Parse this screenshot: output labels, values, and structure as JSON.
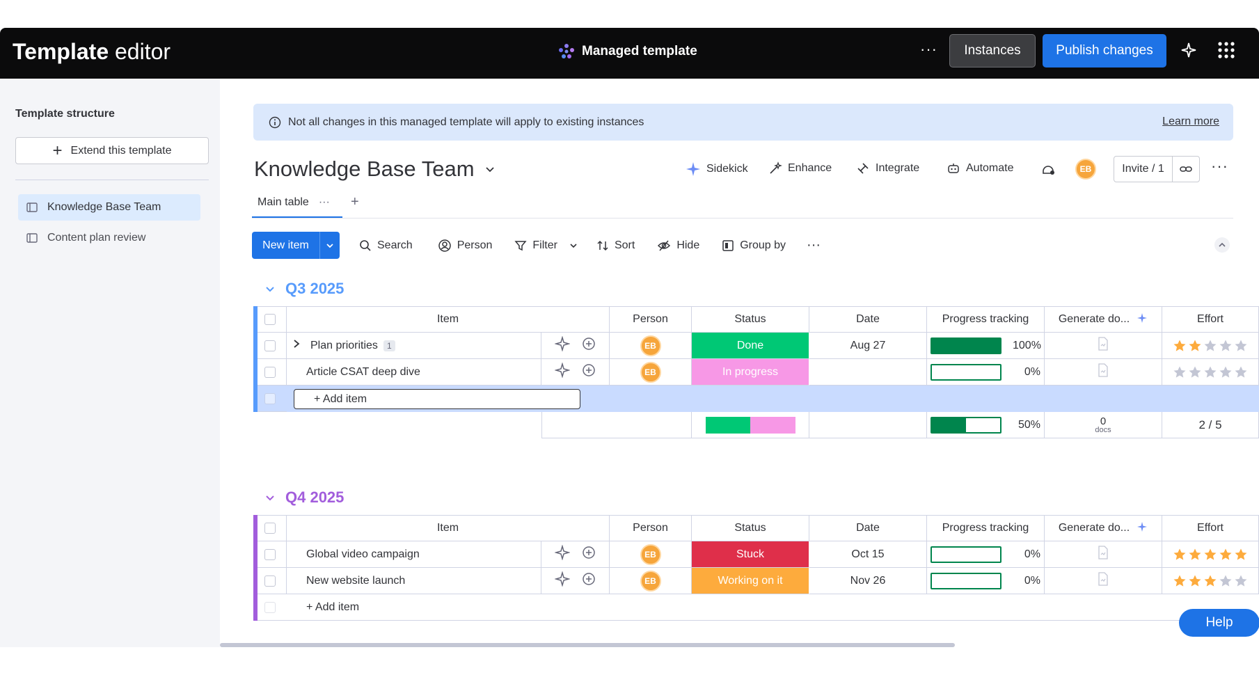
{
  "topbar": {
    "title_bold": "Template",
    "title_rest": "editor",
    "center": "Managed template",
    "more": "···",
    "instances": "Instances",
    "publish": "Publish changes"
  },
  "sidebar": {
    "heading": "Template structure",
    "extend": "Extend this template",
    "items": [
      {
        "label": "Knowledge Base Team"
      },
      {
        "label": "Content plan review"
      }
    ]
  },
  "banner": {
    "text": "Not all changes in this managed template will apply to existing instances",
    "link": "Learn more"
  },
  "board": {
    "title": "Knowledge Base Team",
    "actions": [
      "Sidekick",
      "Enhance",
      "Integrate",
      "Automate"
    ],
    "avatar": "EB",
    "invite": "Invite / 1",
    "more": "···"
  },
  "tabs": {
    "main": "Main table",
    "dots": "···",
    "plus": "+"
  },
  "toolbar": {
    "new_item": "New item",
    "search": "Search",
    "person": "Person",
    "filter": "Filter",
    "sort": "Sort",
    "hide": "Hide",
    "group_by": "Group by",
    "more": "···"
  },
  "columns": {
    "item": "Item",
    "person": "Person",
    "status": "Status",
    "date": "Date",
    "progress": "Progress tracking",
    "generate": "Generate do...",
    "effort": "Effort"
  },
  "colors": {
    "done": "#00c875",
    "in_progress": "#f798e6",
    "stuck": "#df2f4a",
    "working": "#fdab3d",
    "q3": "#579bfc",
    "q4": "#a25ddc"
  },
  "groups": [
    {
      "title": "Q3 2025",
      "rows": [
        {
          "name": "Plan priorities",
          "sub": "1",
          "avatar": "EB",
          "status": "Done",
          "date": "Aug 27",
          "progress": 100,
          "progress_label": "100%",
          "stars": 2
        },
        {
          "name": "Article CSAT deep dive",
          "sub": "",
          "avatar": "EB",
          "status": "In progress",
          "date": "",
          "progress": 0,
          "progress_label": "0%",
          "stars": 0
        }
      ],
      "add_item": "+ Add item",
      "summary": {
        "progress": 50,
        "progress_label": "50%",
        "docs_count": "0",
        "docs_label": "docs",
        "effort": "2 / 5"
      }
    },
    {
      "title": "Q4 2025",
      "rows": [
        {
          "name": "Global video campaign",
          "sub": "",
          "avatar": "EB",
          "status": "Stuck",
          "date": "Oct 15",
          "progress": 0,
          "progress_label": "0%",
          "stars": 5
        },
        {
          "name": "New website launch",
          "sub": "",
          "avatar": "EB",
          "status": "Working on it",
          "date": "Nov 26",
          "progress": 0,
          "progress_label": "0%",
          "stars": 3
        }
      ],
      "add_item": "+ Add item"
    }
  ],
  "help": "Help"
}
